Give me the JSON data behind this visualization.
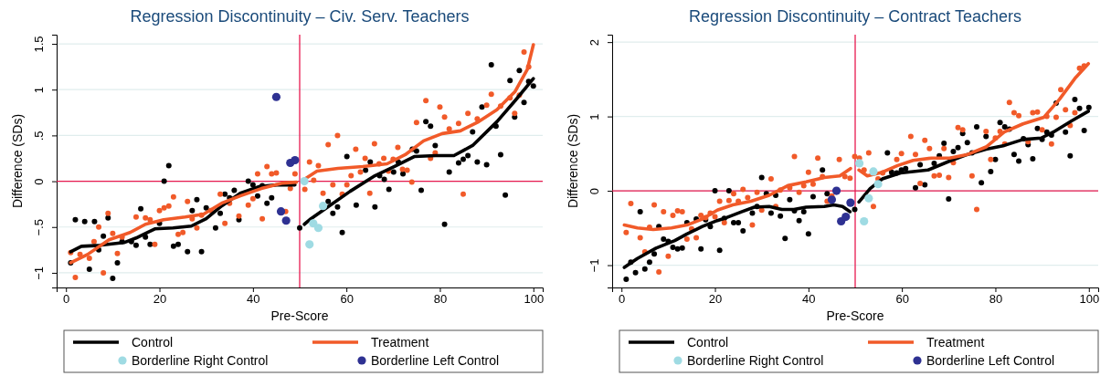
{
  "chart_data": [
    {
      "type": "line",
      "title": "Regression Discontinuity – Civ. Serv. Teachers",
      "xlabel": "Pre-Score",
      "ylabel": "Difference (SDs)",
      "xlim": [
        -2,
        102
      ],
      "ylim": [
        -1.16,
        1.6
      ],
      "xticks": [
        0,
        20,
        40,
        60,
        80,
        100
      ],
      "yticks": [
        {
          "value": -1,
          "label": "−1"
        },
        {
          "value": -0.5,
          "label": "−.5"
        },
        0,
        {
          "value": 0.5,
          "label": ".5"
        },
        1,
        1.5
      ],
      "grid": "y",
      "legend": "bottom",
      "ref_lines": [
        {
          "axis": "x",
          "value": 50,
          "color": "#e8194f"
        },
        {
          "axis": "y",
          "value": 0,
          "color": "#e8194f"
        }
      ],
      "series": [
        {
          "type": "scatter",
          "marker": "circle",
          "color": "#000000",
          "x": [
            2,
            4,
            6.1,
            1,
            5,
            7,
            8,
            9,
            10,
            11,
            12,
            14,
            15,
            16,
            17,
            18,
            20,
            21,
            22,
            23,
            24,
            26,
            27,
            28,
            29,
            30,
            32,
            33,
            34,
            35,
            36,
            37,
            39,
            40,
            41,
            42,
            43,
            44,
            50,
            56.1,
            57.1,
            58.1,
            59.1,
            60.1,
            62.1,
            64.1,
            65.1,
            66.1,
            67.1,
            68.1,
            69.1,
            70.1,
            71.1,
            72.1,
            74.1,
            75,
            76,
            77,
            78,
            79,
            81,
            82,
            84,
            85,
            86,
            87,
            88,
            89,
            90,
            91,
            92,
            93,
            94,
            95,
            96,
            97,
            98,
            99,
            100
          ],
          "values": [
            -0.42,
            -0.44,
            -0.44,
            -0.89,
            -0.96,
            -0.75,
            -0.6,
            -0.4,
            -1.06,
            -0.89,
            -0.66,
            -0.66,
            -0.7,
            -0.3,
            -0.61,
            -0.69,
            -0.46,
            0,
            0.17,
            -0.71,
            -0.69,
            -0.77,
            -0.32,
            -0.2,
            -0.77,
            -0.29,
            -0.51,
            -0.35,
            -0.14,
            -0.18,
            -0.1,
            -0.42,
            0,
            -0.04,
            -0.16,
            -0.05,
            -0.24,
            -0.18,
            -0.51,
            -0.22,
            -0.35,
            -0.28,
            -0.56,
            0.27,
            -0.26,
            0.12,
            0.21,
            -0.28,
            0.06,
            0.02,
            -0.09,
            0.1,
            0.21,
            0.08,
            0.35,
            0.33,
            -0.1,
            0.65,
            0.6,
            0.39,
            -0.47,
            0.1,
            0.2,
            0.24,
            0.28,
            0.54,
            0.21,
            0.81,
            0.18,
            1.27,
            0.6,
            0.29,
            -0.15,
            1.1,
            0.7,
            1.21,
            0.86,
            1.09,
            1.04
          ]
        },
        {
          "type": "scatter",
          "marker": "circle",
          "color": "#f15a29",
          "x": [
            1,
            2,
            3,
            5,
            6,
            7,
            8,
            9,
            10,
            11,
            12,
            15,
            17,
            18,
            19,
            20,
            21,
            22,
            23,
            24,
            25,
            26,
            27,
            28,
            29,
            31,
            33,
            34,
            35,
            37,
            39,
            40,
            41,
            42,
            43,
            44,
            45,
            47,
            48,
            49,
            51.1,
            52.1,
            53,
            54,
            55,
            56.1,
            57.1,
            58.1,
            59.1,
            60.1,
            61,
            62,
            63,
            64,
            65,
            66,
            67,
            68,
            69,
            70,
            71,
            72,
            73,
            74,
            75,
            77,
            78,
            79,
            80,
            81,
            82,
            84,
            85,
            86,
            88,
            90,
            91,
            93,
            95,
            96,
            97,
            98,
            99
          ],
          "values": [
            -0.78,
            -1.05,
            -0.8,
            -0.84,
            -0.66,
            -0.5,
            -1,
            -0.35,
            -0.57,
            -0.79,
            -0.61,
            -0.39,
            -0.4,
            -0.42,
            -0.69,
            -0.32,
            -0.29,
            -0.27,
            -0.17,
            -0.58,
            -0.56,
            -0.22,
            -0.41,
            -0.51,
            -0.37,
            -0.32,
            -0.14,
            -0.46,
            -0.24,
            -0.38,
            -0.26,
            -0.19,
            0.08,
            -0.41,
            0.16,
            0.08,
            0.09,
            -0.33,
            -0.08,
            0.08,
            -0.09,
            0.21,
            0.01,
            0.17,
            -0.13,
            0.4,
            -0.04,
            0.5,
            -0.14,
            -0.04,
            0.06,
            0.35,
            0.1,
            0.25,
            -0.13,
            0.41,
            0.19,
            0.25,
            0.11,
            0.24,
            0.37,
            0.13,
            0.12,
            -0.01,
            0.64,
            0.88,
            0.25,
            0.31,
            0.81,
            0.7,
            0.57,
            0.63,
            -0.14,
            0.74,
            0.68,
            0.83,
            0.95,
            0.82,
            0.91,
            0.74,
            0.94,
            1.41,
            1.25
          ]
        },
        {
          "name": "Control",
          "color": "#000000",
          "x": [
            1,
            3.3,
            7.2,
            12.4,
            15,
            19,
            22.9,
            26.8,
            30,
            33.3,
            37.3,
            41.2,
            45.1,
            49,
            50,
            51,
            52.4,
            56.3,
            60.8,
            66.1,
            70.6,
            74.6,
            79.1,
            83,
            87,
            92.2,
            96.1,
            100
          ],
          "values": [
            -0.77,
            -0.71,
            -0.7,
            -0.67,
            -0.62,
            -0.52,
            -0.51,
            -0.49,
            -0.41,
            -0.27,
            -0.13,
            -0.06,
            -0.04,
            -0.04,
            null,
            -0.47,
            -0.41,
            -0.27,
            -0.11,
            0.06,
            0.17,
            0.27,
            0.28,
            0.28,
            0.39,
            0.65,
            0.88,
            1.12
          ]
        },
        {
          "name": "Treatment",
          "color": "#f15a29",
          "x": [
            1,
            4.6,
            9.2,
            13.7,
            17,
            20.9,
            25.5,
            29.4,
            33.3,
            37.3,
            41.8,
            46.4,
            49.3,
            50,
            51,
            53.7,
            58.2,
            63.5,
            68.7,
            72.6,
            76.5,
            80.5,
            84.4,
            88.3,
            92.2,
            96.1,
            98.7,
            100
          ],
          "values": [
            -0.89,
            -0.8,
            -0.64,
            -0.56,
            -0.47,
            -0.42,
            -0.39,
            -0.36,
            -0.24,
            -0.16,
            -0.08,
            -0.02,
            -0.01,
            null,
            0.02,
            0.11,
            0.14,
            0.16,
            0.19,
            0.29,
            0.44,
            0.52,
            0.55,
            0.65,
            0.78,
            0.98,
            1.22,
            1.49
          ]
        },
        {
          "type": "scatter",
          "marker": "circle",
          "name": "Borderline Right Control",
          "color": "#9fdbe3",
          "x": [
            51,
            55,
            52.9,
            54,
            52.1
          ],
          "values": [
            0,
            -0.27,
            -0.46,
            -0.51,
            -0.69
          ]
        },
        {
          "type": "scatter",
          "marker": "circle",
          "name": "Borderline Left Control",
          "color": "#2e3192",
          "x": [
            45,
            48,
            49,
            46,
            47.1
          ],
          "values": [
            0.92,
            0.2,
            0.23,
            -0.33,
            -0.43
          ]
        }
      ]
    },
    {
      "type": "line",
      "title": "Regression Discontinuity – Contract Teachers",
      "xlabel": "Pre-Score",
      "ylabel": "Difference (SDs)",
      "xlim": [
        -2,
        102
      ],
      "ylim": [
        -1.3,
        2.1
      ],
      "xticks": [
        0,
        20,
        40,
        60,
        80,
        100
      ],
      "yticks": [
        {
          "value": -1,
          "label": "−1"
        },
        0,
        1,
        2
      ],
      "grid": "y",
      "legend": "bottom",
      "ref_lines": [
        {
          "axis": "x",
          "value": 50,
          "color": "#e8194f"
        },
        {
          "axis": "y",
          "value": 0,
          "color": "#e8194f"
        }
      ],
      "series": [
        {
          "type": "scatter",
          "marker": "circle",
          "color": "#000000",
          "x": [
            1,
            2,
            3,
            4,
            5,
            6,
            7,
            8,
            9,
            10,
            11,
            12,
            13,
            14,
            16,
            17,
            18,
            19,
            20,
            21,
            22,
            23,
            24,
            25,
            26,
            28,
            29,
            30,
            31,
            32,
            33,
            34,
            35,
            36,
            37,
            38,
            39,
            40,
            41,
            43,
            44,
            49.9,
            56.9,
            57.8,
            58.9,
            59.9,
            60.8,
            62.9,
            63.9,
            64.9,
            66.9,
            68,
            69,
            70,
            71,
            72,
            73,
            74,
            75,
            76,
            77,
            78,
            79,
            80,
            81,
            82,
            83,
            84,
            85,
            86,
            87,
            88,
            89,
            90,
            91,
            92,
            93,
            95,
            96,
            97,
            98,
            99,
            100
          ],
          "values": [
            -1.19,
            -0.96,
            -1.1,
            -0.28,
            -1.05,
            -0.96,
            -0.85,
            -0.48,
            -0.65,
            -0.68,
            -0.76,
            -0.78,
            -0.77,
            -0.43,
            -0.38,
            -0.78,
            -0.39,
            -0.48,
            0,
            -0.8,
            -0.37,
            0,
            -0.43,
            -0.43,
            -0.54,
            -0.3,
            -0.21,
            0.18,
            -0.04,
            -0.3,
            -0.06,
            -0.34,
            -0.64,
            -0.12,
            -0.27,
            -0.4,
            -0.28,
            -0.58,
            -0.08,
            0.28,
            -0.04,
            -0.25,
            0.51,
            0.25,
            0.24,
            0.28,
            0.3,
            0.04,
            0.35,
            0.08,
            0.37,
            0.47,
            0.64,
            -0.11,
            0.53,
            0.58,
            0.77,
            0.65,
            0.51,
            0.86,
            0.11,
            0.73,
            0.26,
            0.42,
            0.92,
            0.86,
            0.83,
            0.49,
            0.4,
            0.7,
            0.62,
            0.43,
            0.84,
            0.69,
            0.79,
            0.75,
            1.18,
            0.79,
            0.47,
            1.23,
            1.11,
            0.81,
            1.12
          ]
        },
        {
          "type": "scatter",
          "marker": "circle",
          "color": "#f15a29",
          "x": [
            1,
            2,
            4,
            5,
            6,
            7,
            8,
            9,
            10,
            11,
            12,
            13,
            14,
            15,
            16,
            17,
            18,
            19,
            20,
            21,
            22,
            23,
            24,
            25,
            26,
            27,
            28,
            29,
            30,
            32,
            33,
            34,
            36,
            37,
            38,
            39,
            40,
            41,
            42,
            43,
            44,
            45,
            46.6,
            47.8,
            48.9,
            49.9,
            50.9,
            51.9,
            52.9,
            53.9,
            54.9,
            55.9,
            58.9,
            59.9,
            61.9,
            62.9,
            63.9,
            64.9,
            65.9,
            66.9,
            68,
            69,
            70,
            71,
            72,
            73,
            75,
            76,
            78,
            79,
            80,
            81,
            82,
            83,
            84,
            85,
            87,
            88,
            89,
            90,
            91,
            92,
            93,
            94,
            95,
            96,
            97,
            98,
            99
          ],
          "values": [
            -0.56,
            -0.17,
            -0.63,
            -0.82,
            -0.49,
            -0.19,
            -1.09,
            -0.28,
            -0.88,
            -0.33,
            -0.27,
            -0.28,
            -0.65,
            -0.51,
            -0.63,
            -0.33,
            -0.36,
            -0.3,
            -0.35,
            -0.14,
            -0.43,
            -0.13,
            -0.04,
            -0.14,
            0.02,
            -0.09,
            -0.46,
            -0.02,
            -0.26,
            0.16,
            -0.21,
            0.01,
            0.04,
            0.46,
            -0.02,
            0.07,
            0.25,
            0.09,
            0.44,
            0.19,
            -0.14,
            -0.07,
            0.42,
            0.19,
            0.17,
            0.46,
            0.44,
            0.28,
            0.51,
            -0.21,
            0.16,
            0.24,
            0.42,
            0.5,
            0.73,
            0.49,
            0.1,
            0.68,
            0.57,
            0.2,
            0.21,
            0.57,
            0.18,
            0.38,
            0.85,
            0.82,
            0.2,
            -0.25,
            0.8,
            0.42,
            0.71,
            0.8,
            0.63,
            1.19,
            1.05,
            1.01,
            0.66,
            1.05,
            1.06,
            0.82,
            1,
            0.63,
            0.99,
            1.36,
            1.09,
            0.88,
            1.05,
            1.65,
            1.68
          ]
        },
        {
          "name": "Control",
          "color": "#000000",
          "x": [
            0.6,
            3.4,
            7.4,
            11.4,
            14,
            17.3,
            20.5,
            22.5,
            25.8,
            28.4,
            31.6,
            34.3,
            36.9,
            39.5,
            43.4,
            45.4,
            47.3,
            48.9,
            50,
            50.8,
            53.2,
            55.8,
            59.7,
            65.6,
            70.2,
            74.1,
            78,
            81.9,
            85.9,
            89.8,
            92.4,
            96.3,
            99.9
          ],
          "values": [
            -1.03,
            -0.91,
            -0.77,
            -0.67,
            -0.58,
            -0.48,
            -0.4,
            -0.36,
            -0.28,
            -0.22,
            -0.21,
            -0.25,
            -0.25,
            -0.22,
            -0.21,
            -0.19,
            -0.21,
            -0.28,
            null,
            -0.15,
            0.03,
            0.16,
            0.24,
            0.28,
            0.4,
            0.49,
            0.56,
            0.61,
            0.69,
            0.71,
            0.79,
            0.94,
            1.07
          ]
        },
        {
          "name": "Treatment",
          "color": "#f15a29",
          "x": [
            0.6,
            3.4,
            6.8,
            10.7,
            14,
            17.3,
            20.5,
            23.8,
            27.7,
            31.6,
            35.6,
            39.5,
            43.4,
            46.7,
            49,
            50,
            50.8,
            52.6,
            55.8,
            59.1,
            62.4,
            66.3,
            70.2,
            74.1,
            78,
            81.9,
            85.9,
            90.4,
            93.7,
            97,
            99.9
          ],
          "values": [
            -0.46,
            -0.5,
            -0.52,
            -0.5,
            -0.46,
            -0.38,
            -0.26,
            -0.19,
            -0.14,
            -0.06,
            0.07,
            0.12,
            0.18,
            0.2,
            0.3,
            null,
            0.28,
            0.2,
            0.25,
            0.34,
            0.41,
            0.44,
            0.44,
            0.49,
            0.59,
            0.79,
            0.9,
            0.99,
            1.23,
            1.51,
            1.71
          ]
        },
        {
          "type": "scatter",
          "marker": "circle",
          "name": "Borderline Right Control",
          "color": "#9fdbe3",
          "x": [
            50.9,
            51.9,
            52.9,
            53.9,
            54.9
          ],
          "values": [
            0.37,
            -0.41,
            -0.1,
            0.26,
            0.09
          ]
        },
        {
          "type": "scatter",
          "marker": "circle",
          "name": "Borderline Left Control",
          "color": "#2e3192",
          "x": [
            46,
            45,
            47,
            48,
            49
          ],
          "values": [
            0,
            -0.12,
            -0.41,
            -0.35,
            -0.16
          ]
        }
      ]
    }
  ]
}
